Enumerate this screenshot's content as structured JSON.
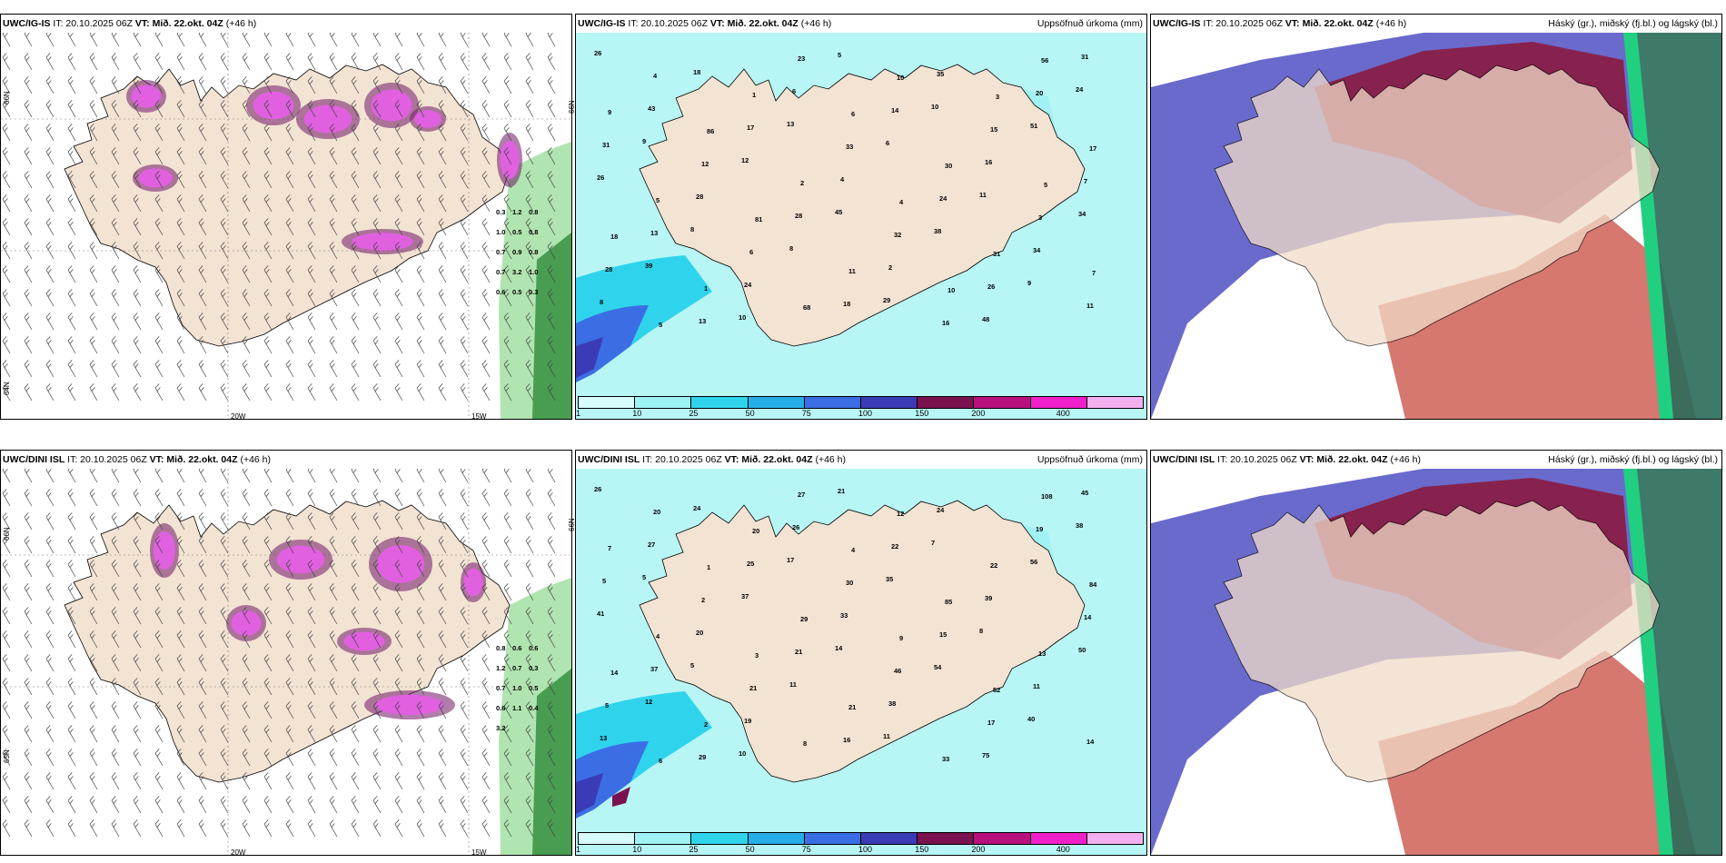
{
  "panels": [
    {
      "model": "UWC/IG-IS",
      "run": "IT: 20.10.2025 06Z",
      "valid_prefix": "VT:",
      "valid": "Mið. 22.okt. 04Z",
      "lead": "(+46 h)",
      "right_title": ""
    },
    {
      "model": "UWC/IG-IS",
      "run": "IT: 20.10.2025 06Z",
      "valid_prefix": "VT:",
      "valid": "Mið. 22.okt. 04Z",
      "lead": "(+46 h)",
      "right_title": "Uppsöfnuð úrkoma (mm)"
    },
    {
      "model": "UWC/IG-IS",
      "run": "IT: 20.10.2025 06Z",
      "valid_prefix": "VT:",
      "valid": "Mið. 22.okt. 04Z",
      "lead": "(+46 h)",
      "right_title": "Háský (gr.), miðský (fj.bl.) og lágský (bl.)"
    },
    {
      "model": "UWC/DINI ISL",
      "run": "IT: 20.10.2025 06Z",
      "valid_prefix": "VT:",
      "valid": "Mið. 22.okt. 04Z",
      "lead": "(+46 h)",
      "right_title": ""
    },
    {
      "model": "UWC/DINI ISL",
      "run": "IT: 20.10.2025 06Z",
      "valid_prefix": "VT:",
      "valid": "Mið. 22.okt. 04Z",
      "lead": "(+46 h)",
      "right_title": "Uppsöfnuð úrkoma (mm)"
    },
    {
      "model": "UWC/DINI ISL",
      "run": "IT: 20.10.2025 06Z",
      "valid_prefix": "VT:",
      "valid": "Mið. 22.okt. 04Z",
      "lead": "(+46 h)",
      "right_title": "Háský (gr.), miðský (fj.bl.) og lágský (bl.)"
    }
  ],
  "axis_labels": {
    "lat66": "66N",
    "lat65": "65N",
    "lat64": "64N",
    "lon20": "20W",
    "lon15": "15W"
  },
  "colorbar": {
    "ticks": [
      "1",
      "10",
      "25",
      "50",
      "75",
      "100",
      "150",
      "200",
      "400"
    ],
    "colors": [
      "#d8fbfb",
      "#9ef2f4",
      "#2fd4ec",
      "#27aee8",
      "#3b6ee4",
      "#3b3bb8",
      "#7a1250",
      "#b8107c",
      "#f020c8",
      "#f4b0ee"
    ]
  },
  "precip_values": {
    "ig": [
      "26",
      "9",
      "8",
      "10",
      "13",
      "45",
      "29",
      "10",
      "11",
      "9",
      "24",
      "26",
      "39",
      "18",
      "12",
      "8",
      "5",
      "6",
      "38",
      "48",
      "51",
      "34",
      "8",
      "43",
      "28",
      "24",
      "6",
      "4",
      "2",
      "35",
      "16",
      "34",
      "31",
      "31",
      "13",
      "13",
      "17",
      "28",
      "18",
      "14",
      "24",
      "26",
      "20",
      "7",
      "28",
      "4",
      "12",
      "6",
      "23",
      "33",
      "32",
      "16",
      "15",
      "3",
      "11",
      "9",
      "5",
      "1",
      "1",
      "2",
      "11",
      "10",
      "30",
      "31",
      "56",
      "17",
      "18",
      "5",
      "86",
      "81",
      "68",
      "6",
      "4",
      "10",
      "3",
      "5",
      "7"
    ],
    "dini": [
      "26",
      "5",
      "5",
      "10",
      "17",
      "14",
      "11",
      "7",
      "8",
      "40",
      "38",
      "41",
      "12",
      "24",
      "37",
      "11",
      "21",
      "35",
      "54",
      "75",
      "56",
      "50",
      "13",
      "27",
      "20",
      "19",
      "26",
      "33",
      "38",
      "24",
      "39",
      "11",
      "45",
      "5",
      "37",
      "29",
      "25",
      "21",
      "16",
      "22",
      "15",
      "17",
      "19",
      "14",
      "5",
      "20",
      "2",
      "21",
      "27",
      "30",
      "46",
      "33",
      "22",
      "13",
      "14",
      "7",
      "4",
      "2",
      "20",
      "29",
      "21",
      "12",
      "85",
      "52",
      "108",
      "84",
      "14",
      "6",
      "1",
      "3",
      "8",
      "4",
      "9"
    ]
  },
  "cloud_legend_note": "Háský (gr.), miðský (fj.bl.) og lágský (bl.)",
  "snow_labels": {
    "ig": [
      "0.3",
      "1.2",
      "0.8",
      "1.0",
      "0.5",
      "0.8",
      "0.7",
      "0.9",
      "0.8",
      "0.7",
      "3.2",
      "1.0",
      "0.6",
      "0.5",
      "0.3"
    ],
    "dini": [
      "0.8",
      "0.6",
      "0.6",
      "1.2",
      "0.7",
      "0.3",
      "0.7",
      "1.0",
      "0.5",
      "0.6",
      "1.1",
      "0.4",
      "3.2"
    ]
  }
}
